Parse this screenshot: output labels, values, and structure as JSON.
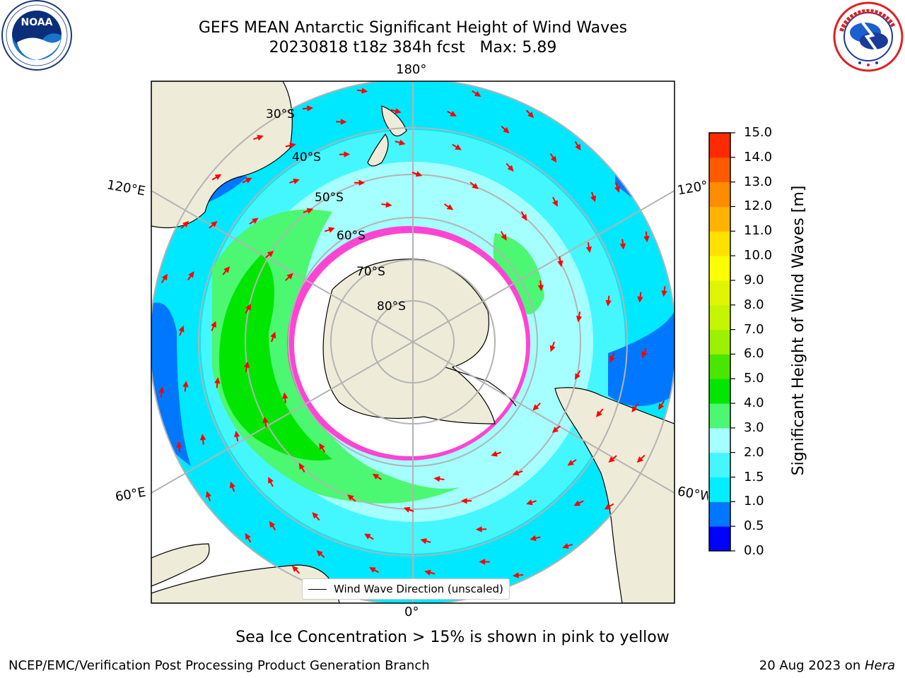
{
  "title": {
    "line1": "GEFS MEAN Antarctic Significant Height of Wind Waves",
    "line2": "20230818 t18z 384h fcst   Max: 5.89"
  },
  "logos": {
    "left": {
      "text": "NOAA",
      "ring_text": "NATIONAL OCEANIC AND ATMOSPHERIC ADMINISTRATION · U.S. DEPARTMENT OF COMMERCE"
    },
    "right": {
      "ring_text": "NATIONAL WEATHER SERVICE"
    }
  },
  "map": {
    "projection": "south-polar-stereographic",
    "longitude_labels": {
      "top": "180°",
      "bottom": "0°",
      "left_upper": "120°E",
      "right_upper": "120°W",
      "left_lower": "60°E",
      "right_lower": "60°W"
    },
    "latitude_labels": [
      "30°S",
      "40°S",
      "50°S",
      "60°S",
      "70°S",
      "80°S"
    ],
    "legend_label": "Wind Wave Direction (unscaled)",
    "colors": {
      "land": "#eeecd9",
      "coastline": "#000000",
      "gridline": "#b3b3b3",
      "arrow": "#ff0000",
      "ice_edge": "#ff44d4"
    }
  },
  "colorbar": {
    "label": "Significant Height of Wind Waves [m]",
    "ticks": [
      "0.0",
      "0.5",
      "1.0",
      "1.5",
      "2.0",
      "3.0",
      "4.0",
      "5.0",
      "6.0",
      "7.0",
      "8.0",
      "9.0",
      "10.0",
      "11.0",
      "12.0",
      "13.0",
      "14.0",
      "15.0"
    ],
    "colors": [
      "#0000ff",
      "#0077ff",
      "#00eeff",
      "#44f7ff",
      "#a6ffff",
      "#4cf772",
      "#00e600",
      "#4ae600",
      "#9cf000",
      "#c5f500",
      "#e0f500",
      "#fcff00",
      "#ffe100",
      "#ffb300",
      "#ff8c00",
      "#ff5a00",
      "#ff2a00"
    ]
  },
  "note": "Sea Ice Concentration > 15% is shown in pink to yellow",
  "footer": {
    "left": "NCEP/EMC/Verification Post Processing Product Generation Branch",
    "right_date": "20 Aug 2023 on ",
    "right_machine": "Hera"
  }
}
